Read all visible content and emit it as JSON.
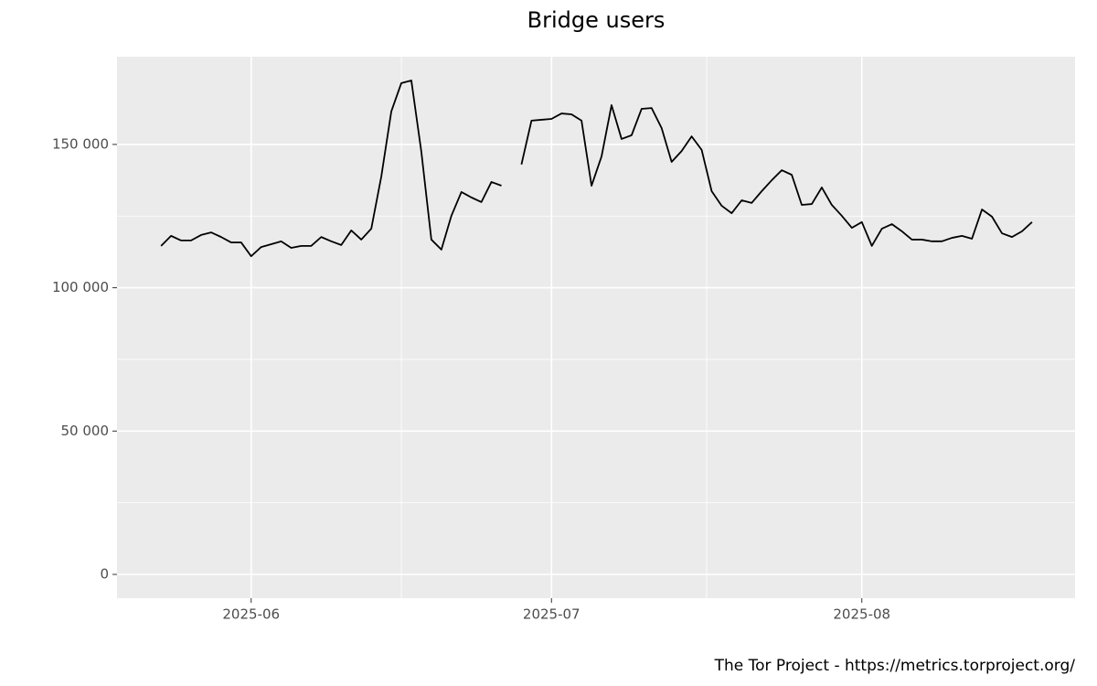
{
  "chart_data": {
    "type": "line",
    "title": "Bridge users",
    "caption": "The Tor Project - https://metrics.torproject.org/",
    "series": [
      {
        "color": "#000000",
        "values": [
          114600,
          118100,
          116500,
          116500,
          118400,
          119300,
          117700,
          115800,
          115800,
          111000,
          114200,
          115200,
          116200,
          113900,
          114600,
          114600,
          117700,
          116200,
          114900,
          120000,
          116800,
          120600,
          138800,
          161500,
          171400,
          172300,
          147400,
          116800,
          113300,
          125100,
          133400,
          131500,
          129900,
          136900,
          135600,
          null,
          143000,
          158300,
          158600,
          158900,
          160800,
          160500,
          158300,
          135600,
          145800,
          163700,
          151900,
          153200,
          162400,
          162700,
          155700,
          143900,
          147700,
          152800,
          148100,
          133700,
          128600,
          126000,
          130500,
          129600,
          133700,
          137500,
          141000,
          139400,
          128900,
          129200,
          135000,
          128900,
          125100,
          120900,
          122900,
          114600,
          120600,
          122200,
          119700,
          116800,
          116800,
          116200,
          116200,
          117400,
          118100,
          117100,
          127300,
          124800,
          119000,
          117700,
          119700,
          122900
        ]
      }
    ],
    "xlim": [
      -4.4,
      91.3
    ],
    "xticks": [
      {
        "value": 9,
        "label": "2025-06"
      },
      {
        "value": 39,
        "label": "2025-07"
      },
      {
        "value": 70,
        "label": "2025-08"
      }
    ],
    "ylim": [
      -8300,
      180600
    ],
    "yticks": [
      0,
      {
        "value": 50000,
        "label": "50 000"
      },
      {
        "value": 100000,
        "label": "100 000"
      },
      {
        "value": 150000,
        "label": "150 000"
      }
    ],
    "grid": true
  }
}
